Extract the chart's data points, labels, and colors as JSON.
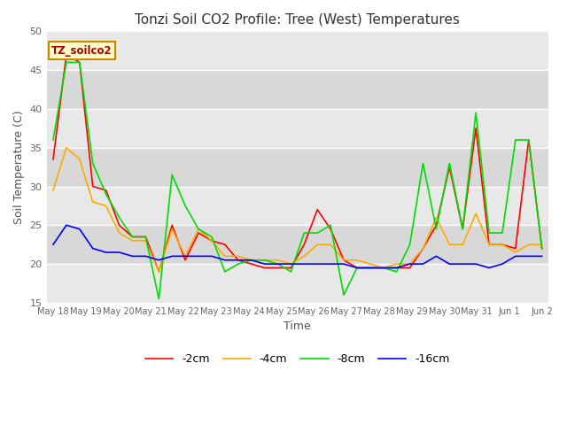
{
  "title": "Tonzi Soil CO2 Profile: Tree (West) Temperatures",
  "ylabel": "Soil Temperature (C)",
  "xlabel": "Time",
  "legend_label": "TZ_soilco2",
  "ylim": [
    15,
    50
  ],
  "series_labels": [
    "-2cm",
    "-4cm",
    "-8cm",
    "-16cm"
  ],
  "series_colors": [
    "#ff0000",
    "#ffaa00",
    "#00dd00",
    "#0000ff"
  ],
  "x_tick_labels": [
    "May 18",
    "May 19",
    "May 20",
    "May 21",
    "May 22",
    "May 23",
    "May 24",
    "May 25",
    "May 26",
    "May 27",
    "May 28",
    "May 29",
    "May 30",
    "May 31",
    "Jun 1",
    "Jun 2"
  ],
  "background_color": "#ffffff",
  "plot_bg_color": "#ffffff",
  "band_color_light": "#e8e8e8",
  "band_color_dark": "#d8d8d8",
  "grid_color": "#ffffff",
  "data_2cm": [
    33.5,
    47.0,
    46.0,
    30.0,
    29.5,
    25.0,
    23.5,
    23.5,
    19.0,
    25.0,
    20.5,
    24.0,
    23.0,
    22.5,
    20.5,
    20.0,
    19.5,
    19.5,
    19.5,
    22.5,
    27.0,
    24.5,
    20.5,
    19.5,
    19.5,
    19.5,
    19.5,
    19.5,
    22.0,
    25.0,
    32.5,
    24.5,
    37.5,
    22.5,
    22.5,
    22.0,
    36.0,
    22.0
  ],
  "data_4cm": [
    29.5,
    35.0,
    33.5,
    28.0,
    27.5,
    24.0,
    23.0,
    23.0,
    19.0,
    24.5,
    21.0,
    24.5,
    23.0,
    21.0,
    21.0,
    20.5,
    20.5,
    20.5,
    20.0,
    21.0,
    22.5,
    22.5,
    20.5,
    20.5,
    20.0,
    19.5,
    20.0,
    20.0,
    22.0,
    26.0,
    22.5,
    22.5,
    26.5,
    22.5,
    22.5,
    21.5,
    22.5,
    22.5
  ],
  "data_8cm": [
    36.0,
    46.0,
    46.0,
    33.0,
    29.0,
    26.0,
    23.5,
    23.5,
    15.5,
    31.5,
    27.5,
    24.5,
    23.5,
    19.0,
    20.0,
    20.5,
    20.5,
    20.0,
    19.0,
    24.0,
    24.0,
    25.0,
    16.0,
    19.5,
    19.5,
    19.5,
    19.0,
    22.5,
    33.0,
    24.5,
    33.0,
    24.5,
    39.5,
    24.0,
    24.0,
    36.0,
    36.0,
    22.0
  ],
  "data_16cm": [
    22.5,
    25.0,
    24.5,
    22.0,
    21.5,
    21.5,
    21.0,
    21.0,
    20.5,
    21.0,
    21.0,
    21.0,
    21.0,
    20.5,
    20.5,
    20.5,
    20.0,
    20.0,
    20.0,
    20.0,
    20.0,
    20.0,
    20.0,
    19.5,
    19.5,
    19.5,
    19.5,
    20.0,
    20.0,
    21.0,
    20.0,
    20.0,
    20.0,
    19.5,
    20.0,
    21.0,
    21.0,
    21.0
  ],
  "yticks": [
    15,
    20,
    25,
    30,
    35,
    40,
    45,
    50
  ]
}
